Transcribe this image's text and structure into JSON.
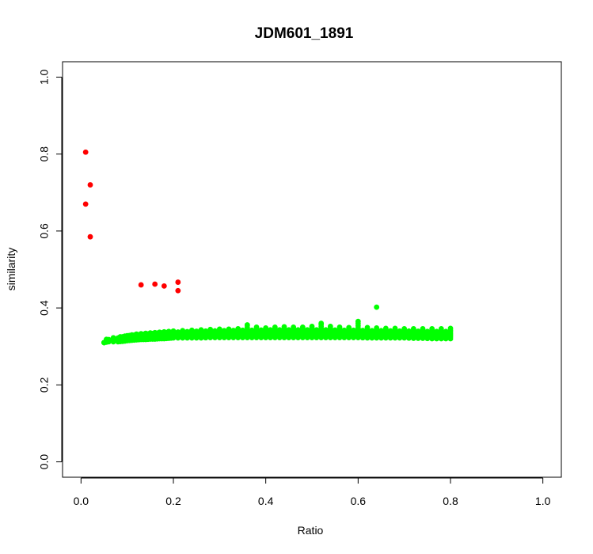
{
  "chart_data": {
    "type": "scatter",
    "title": "JDM601_1891",
    "xlabel": "Ratio",
    "ylabel": "similarity",
    "xlim": [
      -0.04,
      1.04
    ],
    "ylim": [
      -0.04,
      1.04
    ],
    "x_ticks": [
      0.0,
      0.2,
      0.4,
      0.6,
      0.8,
      1.0
    ],
    "x_tick_labels": [
      "0.0",
      "0.2",
      "0.4",
      "0.6",
      "0.8",
      "1.0"
    ],
    "y_ticks": [
      0.0,
      0.2,
      0.4,
      0.6,
      0.8,
      1.0
    ],
    "y_tick_labels": [
      "0.0",
      "0.2",
      "0.4",
      "0.6",
      "0.8",
      "1.0"
    ],
    "grid": false,
    "series": [
      {
        "color": "#ff0000",
        "x": [
          0.01,
          0.02,
          0.01,
          0.02,
          0.13,
          0.16,
          0.18,
          0.21,
          0.21
        ],
        "y": [
          0.805,
          0.72,
          0.67,
          0.585,
          0.46,
          0.462,
          0.457,
          0.467,
          0.445
        ]
      },
      {
        "color": "#00ff00",
        "x": [
          0.05,
          0.06,
          0.08,
          0.09,
          0.1,
          0.11,
          0.12,
          0.13,
          0.14,
          0.15,
          0.16,
          0.17,
          0.18,
          0.19,
          0.2,
          0.22,
          0.24,
          0.26,
          0.28,
          0.3,
          0.32,
          0.34,
          0.36,
          0.38,
          0.4,
          0.42,
          0.44,
          0.46,
          0.48,
          0.5,
          0.52,
          0.54,
          0.56,
          0.58,
          0.6,
          0.62,
          0.64,
          0.66,
          0.68,
          0.7,
          0.72,
          0.74,
          0.76,
          0.78,
          0.8
        ],
        "y": [
          0.31,
          0.315,
          0.318,
          0.32,
          0.322,
          0.323,
          0.324,
          0.325,
          0.326,
          0.327,
          0.328,
          0.329,
          0.33,
          0.33,
          0.331,
          0.332,
          0.333,
          0.334,
          0.334,
          0.335,
          0.335,
          0.336,
          0.336,
          0.336,
          0.337,
          0.337,
          0.337,
          0.337,
          0.337,
          0.337,
          0.337,
          0.337,
          0.336,
          0.336,
          0.336,
          0.335,
          0.335,
          0.335,
          0.334,
          0.334,
          0.334,
          0.333,
          0.333,
          0.333,
          0.333
        ],
        "band_min": [
          0.31,
          0.312,
          0.312,
          0.313,
          0.315,
          0.316,
          0.317,
          0.318,
          0.318,
          0.319,
          0.319,
          0.32,
          0.32,
          0.321,
          0.322,
          0.322,
          0.322,
          0.322,
          0.323,
          0.323,
          0.323,
          0.323,
          0.323,
          0.323,
          0.323,
          0.323,
          0.323,
          0.323,
          0.323,
          0.323,
          0.323,
          0.323,
          0.323,
          0.323,
          0.323,
          0.322,
          0.322,
          0.322,
          0.322,
          0.322,
          0.321,
          0.321,
          0.32,
          0.32,
          0.32
        ],
        "band_max": [
          0.31,
          0.318,
          0.322,
          0.325,
          0.328,
          0.33,
          0.332,
          0.333,
          0.334,
          0.335,
          0.336,
          0.337,
          0.338,
          0.339,
          0.34,
          0.341,
          0.342,
          0.343,
          0.344,
          0.345,
          0.345,
          0.346,
          0.355,
          0.35,
          0.348,
          0.35,
          0.351,
          0.35,
          0.35,
          0.352,
          0.358,
          0.352,
          0.35,
          0.349,
          0.36,
          0.349,
          0.348,
          0.347,
          0.347,
          0.346,
          0.346,
          0.346,
          0.346,
          0.346,
          0.347
        ],
        "outliers": [
          {
            "x": 0.64,
            "y": 0.402
          },
          {
            "x": 0.6,
            "y": 0.365
          },
          {
            "x": 0.52,
            "y": 0.36
          },
          {
            "x": 0.36,
            "y": 0.356
          }
        ]
      }
    ]
  }
}
